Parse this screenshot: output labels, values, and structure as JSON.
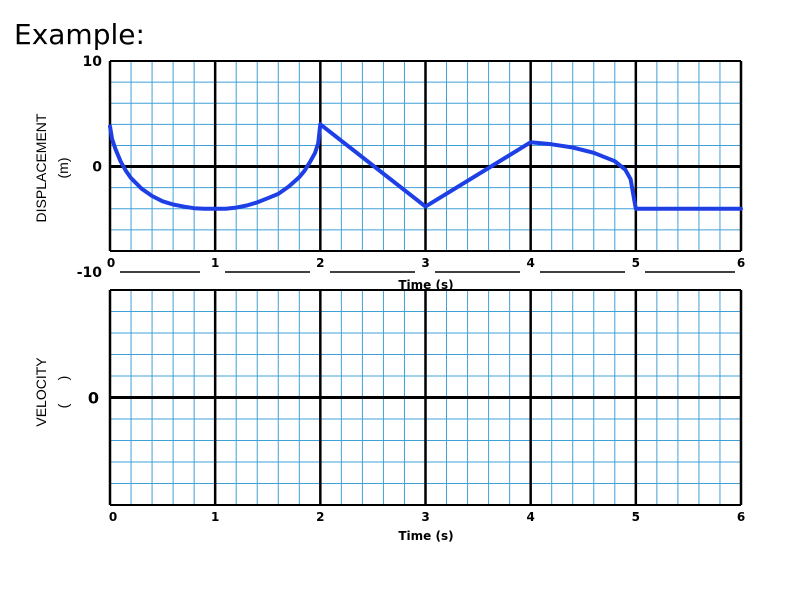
{
  "heading": "Example:",
  "chart_data": [
    {
      "type": "line",
      "ylabel": "DISPLACEMENT",
      "yunit": "(m)",
      "xlabel": "Time (s)",
      "xlim": [
        0,
        6
      ],
      "ylim": [
        -10,
        10
      ],
      "xticks": [
        "0",
        "1",
        "2",
        "3",
        "4",
        "5",
        "6"
      ],
      "yticks": [
        "10",
        "0",
        "-10"
      ],
      "grid": true,
      "line_color": "#1f3fe6",
      "grid_color": "#3fa0d8",
      "series": [
        {
          "x": [
            0,
            0.02,
            0.05,
            0.1,
            0.15,
            0.2,
            0.3,
            0.4,
            0.5,
            0.6,
            0.7,
            0.8,
            0.9,
            1,
            1.1,
            1.2,
            1.3,
            1.4,
            1.5,
            1.6,
            1.7,
            1.8,
            1.85,
            1.9,
            1.95,
            1.98,
            2,
            3,
            4,
            4.2,
            4.4,
            4.6,
            4.8,
            4.9,
            4.95,
            5,
            6
          ],
          "y": [
            3.8,
            2.6,
            1.7,
            0.5,
            -0.4,
            -1.1,
            -2.1,
            -2.8,
            -3.3,
            -3.6,
            -3.8,
            -3.95,
            -4.0,
            -4.0,
            -4.0,
            -3.9,
            -3.7,
            -3.4,
            -3.0,
            -2.6,
            -1.9,
            -1.0,
            -0.4,
            0.4,
            1.3,
            2.2,
            4.0,
            -3.8,
            2.3,
            2.1,
            1.8,
            1.3,
            0.5,
            -0.3,
            -1.2,
            -4.0,
            -4.0
          ]
        }
      ]
    },
    {
      "type": "line",
      "ylabel": "VELOCITY",
      "yunit": "(      )",
      "xlabel": "Time (s)",
      "xlim": [
        0,
        6
      ],
      "xticks": [
        "0",
        "1",
        "2",
        "3",
        "4",
        "5",
        "6"
      ],
      "yticks": [
        "0"
      ],
      "grid": true,
      "grid_color": "#3fa0d8",
      "series": []
    }
  ]
}
